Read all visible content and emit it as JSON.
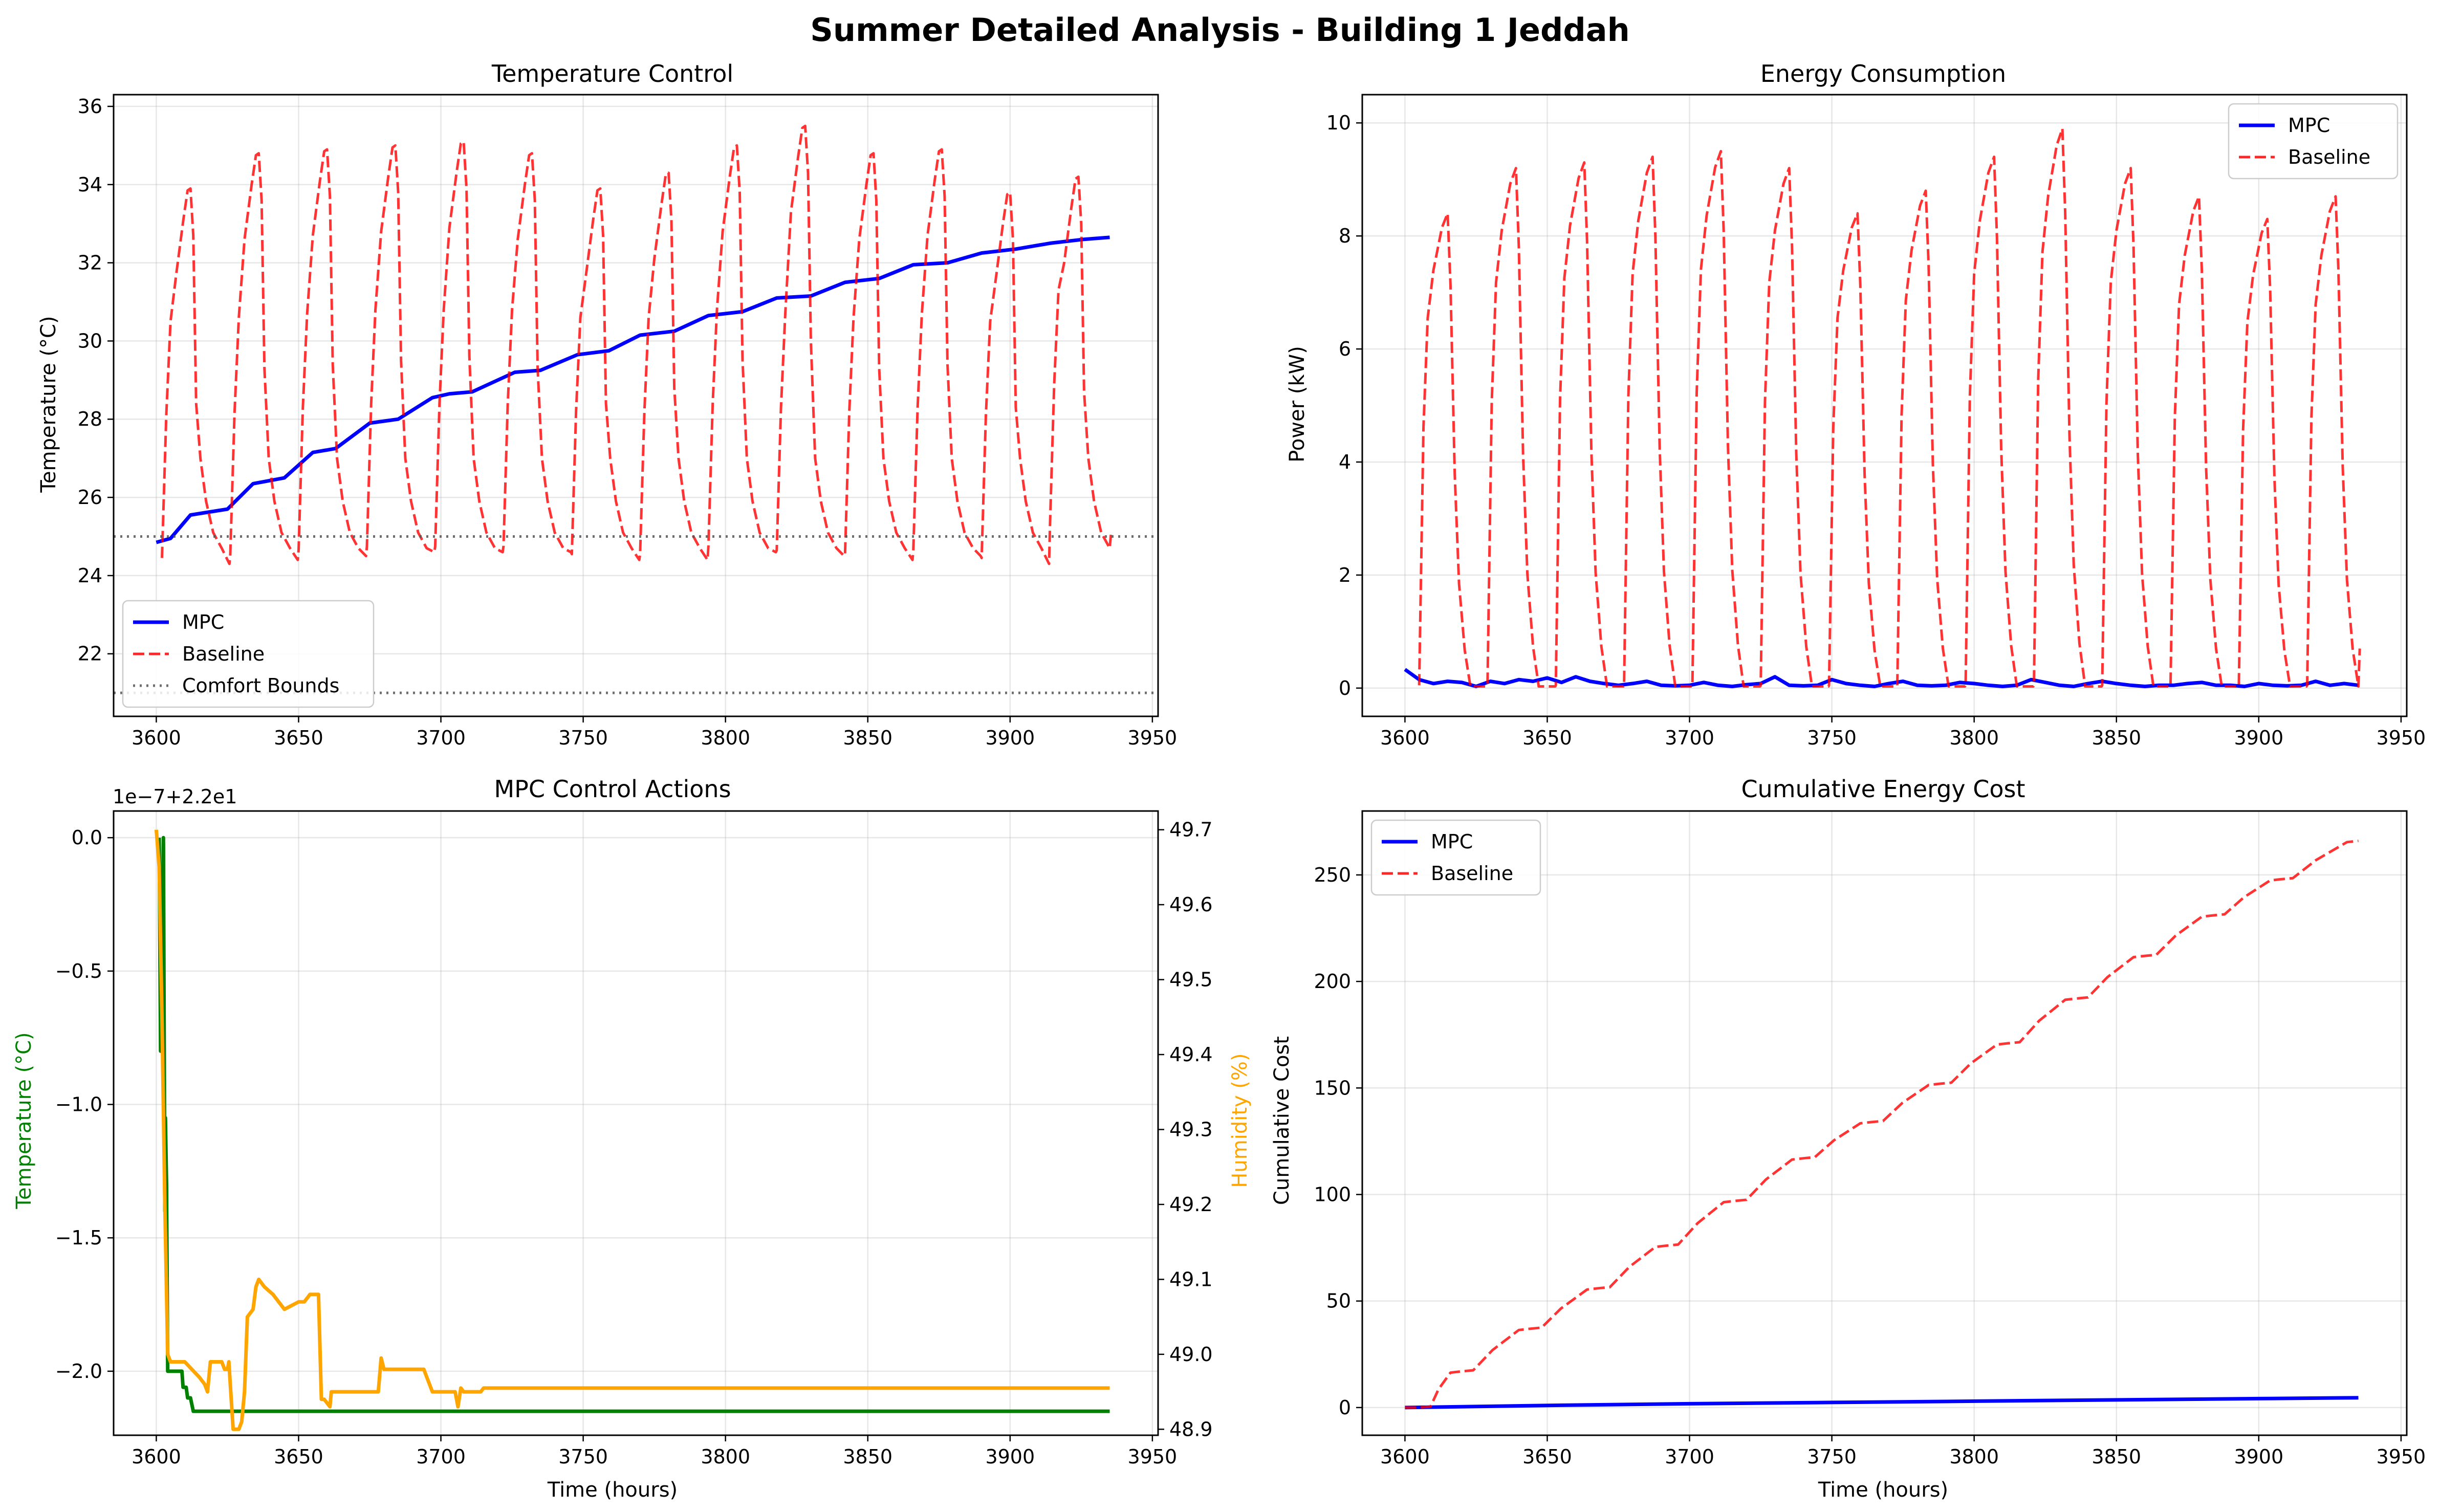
{
  "figure": {
    "title": "Summer Detailed Analysis - Building 1 Jeddah"
  },
  "colors": {
    "mpc": "#0000ff",
    "baseline": "#ff0000",
    "comfort": "#555555",
    "control_temp": "#008000",
    "control_humidity": "#ffa500"
  },
  "chart_data": [
    {
      "id": "temperature",
      "type": "line",
      "title": "Temperature Control",
      "xlabel": "",
      "ylabel": "Temperature (°C)",
      "xlim": [
        3585,
        3952
      ],
      "ylim": [
        20.4,
        36.3
      ],
      "xticks": [
        3600,
        3650,
        3700,
        3750,
        3800,
        3850,
        3900,
        3950
      ],
      "yticks": [
        22,
        24,
        26,
        28,
        30,
        32,
        34,
        36
      ],
      "grid": true,
      "legend": "lower-left",
      "series": [
        {
          "name": "MPC",
          "style": "solid",
          "color": "#0000ff",
          "x": [
            3600,
            3605,
            3612,
            3625,
            3634,
            3645,
            3655,
            3663,
            3675,
            3685,
            3697,
            3703,
            3711,
            3726,
            3735,
            3748,
            3759,
            3770,
            3782,
            3794,
            3806,
            3818,
            3830,
            3842,
            3854,
            3866,
            3878,
            3890,
            3902,
            3914,
            3926,
            3935
          ],
          "y": [
            24.85,
            24.95,
            25.55,
            25.7,
            26.35,
            26.5,
            27.15,
            27.25,
            27.9,
            28.0,
            28.55,
            28.65,
            28.7,
            29.2,
            29.25,
            29.65,
            29.75,
            30.15,
            30.25,
            30.65,
            30.75,
            31.1,
            31.15,
            31.5,
            31.6,
            31.95,
            32.0,
            32.25,
            32.35,
            32.5,
            32.6,
            32.65
          ]
        },
        {
          "name": "Baseline",
          "style": "dashed",
          "color": "#ff0000",
          "cycles": [
            {
              "start": 3602,
              "peak": 33.9,
              "end": 24.3
            },
            {
              "start": 3626,
              "peak": 34.8,
              "end": 24.4
            },
            {
              "start": 3650,
              "peak": 34.9,
              "end": 24.5
            },
            {
              "start": 3674,
              "peak": 35.0,
              "end": 24.6
            },
            {
              "start": 3698,
              "peak": 35.1,
              "end": 24.6
            },
            {
              "start": 3722,
              "peak": 34.8,
              "end": 24.6
            },
            {
              "start": 3746,
              "peak": 33.9,
              "end": 24.4
            },
            {
              "start": 3770,
              "peak": 34.3,
              "end": 24.4
            },
            {
              "start": 3794,
              "peak": 35.0,
              "end": 24.6
            },
            {
              "start": 3818,
              "peak": 35.5,
              "end": 24.5
            },
            {
              "start": 3842,
              "peak": 34.8,
              "end": 24.4
            },
            {
              "start": 3866,
              "peak": 34.9,
              "end": 24.5
            },
            {
              "start": 3890,
              "peak": 33.8,
              "end": 24.3
            },
            {
              "start": 3914,
              "peak": 34.2,
              "end": 25.1
            }
          ]
        },
        {
          "name": "Comfort Bounds",
          "style": "dotted",
          "color": "#555555",
          "hlines": [
            21,
            25
          ]
        }
      ]
    },
    {
      "id": "energy",
      "type": "line",
      "title": "Energy Consumption",
      "xlabel": "",
      "ylabel": "Power (kW)",
      "xlim": [
        3585,
        3952
      ],
      "ylim": [
        -0.5,
        10.5
      ],
      "xticks": [
        3600,
        3650,
        3700,
        3750,
        3800,
        3850,
        3900,
        3950
      ],
      "yticks": [
        0,
        2,
        4,
        6,
        8,
        10
      ],
      "grid": true,
      "legend": "top-right",
      "series": [
        {
          "name": "MPC",
          "style": "solid",
          "color": "#0000ff",
          "x": [
            3600,
            3605,
            3610,
            3615,
            3620,
            3625,
            3630,
            3635,
            3640,
            3645,
            3650,
            3655,
            3660,
            3665,
            3670,
            3675,
            3680,
            3685,
            3690,
            3695,
            3700,
            3705,
            3710,
            3715,
            3720,
            3725,
            3730,
            3735,
            3740,
            3745,
            3750,
            3755,
            3760,
            3765,
            3770,
            3775,
            3780,
            3785,
            3790,
            3795,
            3800,
            3805,
            3810,
            3815,
            3820,
            3825,
            3830,
            3835,
            3840,
            3845,
            3850,
            3855,
            3860,
            3865,
            3870,
            3875,
            3880,
            3885,
            3890,
            3895,
            3900,
            3905,
            3910,
            3915,
            3920,
            3925,
            3930,
            3935
          ],
          "y": [
            0.33,
            0.15,
            0.08,
            0.12,
            0.1,
            0.03,
            0.12,
            0.08,
            0.15,
            0.12,
            0.18,
            0.1,
            0.2,
            0.12,
            0.08,
            0.05,
            0.08,
            0.12,
            0.05,
            0.04,
            0.05,
            0.1,
            0.05,
            0.03,
            0.06,
            0.08,
            0.2,
            0.05,
            0.04,
            0.05,
            0.15,
            0.08,
            0.05,
            0.03,
            0.08,
            0.12,
            0.05,
            0.04,
            0.05,
            0.1,
            0.08,
            0.05,
            0.03,
            0.05,
            0.15,
            0.1,
            0.05,
            0.03,
            0.08,
            0.12,
            0.08,
            0.05,
            0.03,
            0.05,
            0.05,
            0.08,
            0.1,
            0.05,
            0.05,
            0.03,
            0.08,
            0.05,
            0.04,
            0.05,
            0.12,
            0.05,
            0.08,
            0.05
          ]
        },
        {
          "name": "Baseline",
          "style": "dashed",
          "color": "#ff0000",
          "cycles": [
            {
              "start": 3605,
              "peak": 8.4,
              "end": 0.05
            },
            {
              "start": 3629,
              "peak": 9.2,
              "end": 0.05
            },
            {
              "start": 3653,
              "peak": 9.3,
              "end": 0.05
            },
            {
              "start": 3677,
              "peak": 9.4,
              "end": 0.05
            },
            {
              "start": 3701,
              "peak": 9.5,
              "end": 0.05
            },
            {
              "start": 3725,
              "peak": 9.2,
              "end": 0.05
            },
            {
              "start": 3749,
              "peak": 8.4,
              "end": 0.05
            },
            {
              "start": 3773,
              "peak": 8.8,
              "end": 0.05
            },
            {
              "start": 3797,
              "peak": 9.4,
              "end": 0.05
            },
            {
              "start": 3821,
              "peak": 9.9,
              "end": 0.05
            },
            {
              "start": 3845,
              "peak": 9.2,
              "end": 0.05
            },
            {
              "start": 3869,
              "peak": 8.7,
              "end": 0.05
            },
            {
              "start": 3893,
              "peak": 8.3,
              "end": 0.05
            },
            {
              "start": 3917,
              "peak": 8.7,
              "end": 0.7
            }
          ]
        }
      ]
    },
    {
      "id": "control",
      "type": "line",
      "title": "MPC Control Actions",
      "xlabel": "Time (hours)",
      "ylabel": "Temperature (°C)",
      "ylabel_right": "Humidity (%)",
      "offset_label": "1e−7+2.2e1",
      "xlim": [
        3585,
        3952
      ],
      "ylim": [
        -2.24,
        0.1
      ],
      "ylim_right": [
        48.892,
        49.725
      ],
      "xticks": [
        3600,
        3650,
        3700,
        3750,
        3800,
        3850,
        3900,
        3950
      ],
      "yticks": [
        0.0,
        -0.5,
        -1.0,
        -1.5,
        -2.0
      ],
      "yticks_right": [
        48.9,
        49.0,
        49.1,
        49.2,
        49.3,
        49.4,
        49.5,
        49.6,
        49.7
      ],
      "grid": true,
      "series": [
        {
          "name": "Temperature (°C)",
          "style": "solid",
          "color": "#008000",
          "axis": "left",
          "x": [
            3601,
            3601.5,
            3602,
            3602.5,
            3603,
            3603.2,
            3603.6,
            3604,
            3604.5,
            3609,
            3609.4,
            3610.5,
            3611,
            3612,
            3613,
            3935
          ],
          "y": [
            0.0,
            -0.8,
            -0.4,
            0.0,
            -1.4,
            -1.05,
            -1.3,
            -2.0,
            -2.0,
            -2.0,
            -2.06,
            -2.06,
            -2.1,
            -2.1,
            -2.15,
            -2.15
          ]
        },
        {
          "name": "Humidity (%)",
          "style": "solid",
          "color": "#ffa500",
          "axis": "right",
          "x": [
            3600,
            3601,
            3602,
            3603,
            3604,
            3605,
            3610,
            3615,
            3617,
            3618,
            3619,
            3623,
            3624,
            3625,
            3625.5,
            3627,
            3628,
            3629,
            3630,
            3631,
            3632,
            3634,
            3635,
            3636,
            3638,
            3641,
            3645,
            3650,
            3652,
            3654,
            3655,
            3656,
            3657,
            3658,
            3659,
            3661,
            3661.5,
            3670,
            3675,
            3678,
            3679,
            3680,
            3681,
            3694,
            3695,
            3696,
            3697,
            3699,
            3705,
            3706,
            3707,
            3708,
            3714,
            3715,
            3935
          ],
          "y": [
            49.7,
            49.65,
            49.45,
            49.2,
            49.0,
            48.99,
            48.99,
            48.97,
            48.96,
            48.95,
            48.99,
            48.99,
            48.98,
            48.98,
            48.99,
            48.9,
            48.9,
            48.9,
            48.91,
            48.95,
            49.05,
            49.06,
            49.09,
            49.1,
            49.09,
            49.08,
            49.06,
            49.07,
            49.07,
            49.08,
            49.08,
            49.08,
            49.08,
            48.94,
            48.94,
            48.93,
            48.95,
            48.95,
            48.95,
            48.95,
            48.995,
            48.98,
            48.98,
            48.98,
            48.97,
            48.96,
            48.95,
            48.95,
            48.95,
            48.93,
            48.955,
            48.95,
            48.95,
            48.955,
            48.955
          ]
        }
      ]
    },
    {
      "id": "cost",
      "type": "line",
      "title": "Cumulative Energy Cost",
      "xlabel": "Time (hours)",
      "ylabel": "Cumulative Cost",
      "xlim": [
        3585,
        3952
      ],
      "ylim": [
        -13,
        280
      ],
      "xticks": [
        3600,
        3650,
        3700,
        3750,
        3800,
        3850,
        3900,
        3950
      ],
      "yticks": [
        0,
        50,
        100,
        150,
        200,
        250
      ],
      "grid": true,
      "legend": "top-left",
      "series": [
        {
          "name": "MPC",
          "style": "solid",
          "color": "#0000ff",
          "x": [
            3600,
            3650,
            3700,
            3750,
            3800,
            3850,
            3900,
            3935
          ],
          "y": [
            0.0,
            1.0,
            1.8,
            2.4,
            3.0,
            3.6,
            4.2,
            4.6
          ]
        },
        {
          "name": "Baseline",
          "style": "dashed",
          "color": "#ff0000",
          "steps": [
            [
              3605,
              0
            ],
            [
              3620,
              17
            ],
            [
              3644,
              37
            ],
            [
              3668,
              56
            ],
            [
              3692,
              76
            ],
            [
              3716,
              97
            ],
            [
              3740,
              117
            ],
            [
              3764,
              134
            ],
            [
              3788,
              152
            ],
            [
              3812,
              171
            ],
            [
              3836,
              192
            ],
            [
              3860,
              212
            ],
            [
              3884,
              231
            ],
            [
              3908,
              248
            ],
            [
              3935,
              266
            ]
          ]
        }
      ]
    }
  ]
}
